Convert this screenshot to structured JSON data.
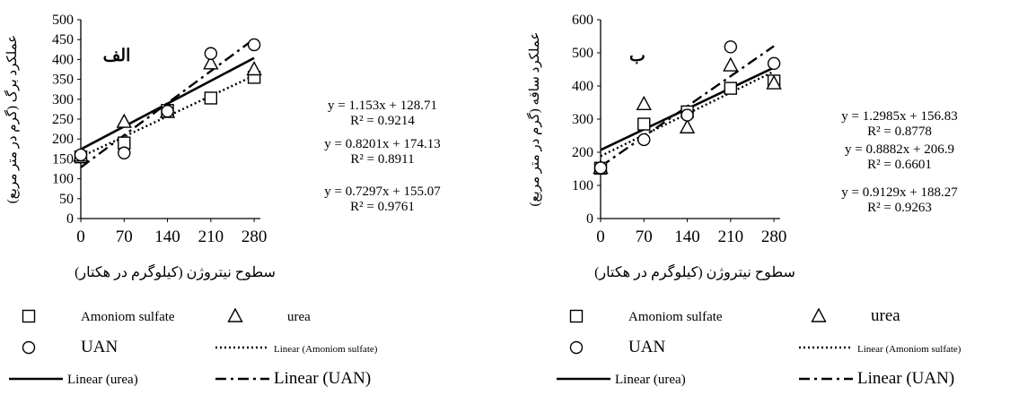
{
  "chart_data": [
    {
      "type": "scatter",
      "panel_label": "الف",
      "xlabel": "سطوح نیتروژن (کیلوگرم در هکتار)",
      "ylabel": "عملکرد برگ (گرم در متر مربع)",
      "x": [
        0,
        70,
        140,
        210,
        280
      ],
      "x_ticks": [
        "0",
        "70",
        "140",
        "210",
        "280"
      ],
      "ylim": [
        0,
        500
      ],
      "y_ticks": [
        "0",
        "50",
        "100",
        "150",
        "200",
        "250",
        "300",
        "350",
        "400",
        "450",
        "500"
      ],
      "grid": false,
      "series": [
        {
          "name": "Amoniom sulfate",
          "marker": "square",
          "values": [
            155,
            190,
            272,
            303,
            355
          ]
        },
        {
          "name": "urea",
          "marker": "triangle",
          "values": [
            158,
            243,
            268,
            390,
            375
          ]
        },
        {
          "name": "UAN",
          "marker": "circle",
          "values": [
            160,
            165,
            270,
            415,
            437
          ]
        }
      ],
      "trendlines": [
        {
          "name": "Linear (Amoniom sulfate)",
          "style": "dotted",
          "slope": 0.7297,
          "intercept": 155.07
        },
        {
          "name": "Linear (urea)",
          "style": "solid",
          "slope": 0.8201,
          "intercept": 174.13
        },
        {
          "name": "Linear (UAN)",
          "style": "dashdot",
          "slope": 1.153,
          "intercept": 128.71
        }
      ],
      "equations": [
        {
          "eq": "y = 1.153x + 128.71",
          "r2": "R² = 0.9214"
        },
        {
          "eq": "y = 0.8201x + 174.13",
          "r2": "R² = 0.8911"
        },
        {
          "eq": "y = 0.7297x + 155.07",
          "r2": "R² = 0.9761"
        }
      ],
      "legend": {
        "position": "bottom",
        "entries": [
          {
            "kind": "square",
            "label": "Amoniom sulfate"
          },
          {
            "kind": "triangle",
            "label": "urea"
          },
          {
            "kind": "circle",
            "label": "UAN"
          },
          {
            "kind": "dotted",
            "label": "Linear (Amoniom sulfate)"
          },
          {
            "kind": "solid",
            "label": "Linear (urea)"
          },
          {
            "kind": "dashdot",
            "label": "Linear (UAN)"
          }
        ]
      }
    },
    {
      "type": "scatter",
      "panel_label": "ب",
      "xlabel": "سطوح نیتروژن (کیلوگرم در هکتار)",
      "ylabel": "عملکرد ساقه (گرم در متر مربع)",
      "x": [
        0,
        70,
        140,
        210,
        280
      ],
      "x_ticks": [
        "0",
        "70",
        "140",
        "210",
        "280"
      ],
      "ylim": [
        0,
        600
      ],
      "y_ticks": [
        "0",
        "100",
        "200",
        "300",
        "400",
        "500",
        "600"
      ],
      "grid": false,
      "series": [
        {
          "name": "Amoniom sulfate",
          "marker": "square",
          "values": [
            152,
            285,
            322,
            393,
            415
          ]
        },
        {
          "name": "urea",
          "marker": "triangle",
          "values": [
            153,
            345,
            275,
            462,
            408
          ]
        },
        {
          "name": "UAN",
          "marker": "circle",
          "values": [
            153,
            238,
            312,
            518,
            468
          ]
        }
      ],
      "trendlines": [
        {
          "name": "Linear (Amoniom sulfate)",
          "style": "dotted",
          "slope": 0.9129,
          "intercept": 188.27
        },
        {
          "name": "Linear (urea)",
          "style": "solid",
          "slope": 0.8882,
          "intercept": 206.9
        },
        {
          "name": "Linear (UAN)",
          "style": "dashdot",
          "slope": 1.2985,
          "intercept": 156.83
        }
      ],
      "equations": [
        {
          "eq": "y = 1.2985x + 156.83",
          "r2": "R² = 0.8778"
        },
        {
          "eq": "y = 0.8882x + 206.9",
          "r2": "R² = 0.6601"
        },
        {
          "eq": "y = 0.9129x + 188.27",
          "r2": "R² = 0.9263"
        }
      ],
      "legend": {
        "position": "bottom",
        "entries": [
          {
            "kind": "square",
            "label": "Amoniom sulfate"
          },
          {
            "kind": "triangle",
            "label": "urea"
          },
          {
            "kind": "circle",
            "label": "UAN"
          },
          {
            "kind": "dotted",
            "label": "Linear (Amoniom sulfate)"
          },
          {
            "kind": "solid",
            "label": "Linear (urea)"
          },
          {
            "kind": "dashdot",
            "label": "Linear (UAN)"
          }
        ]
      }
    }
  ]
}
